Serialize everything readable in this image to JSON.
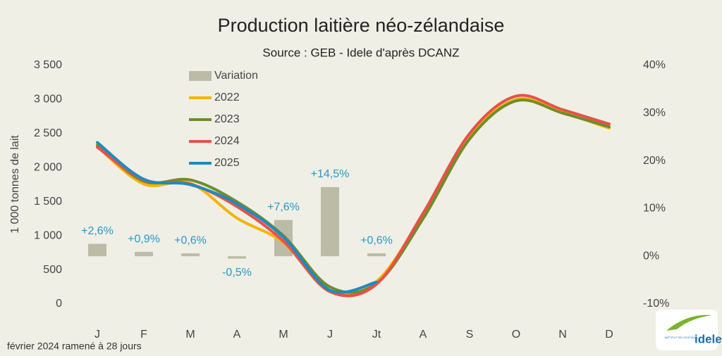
{
  "chart_data": {
    "type": "combo",
    "title": "Production laitière néo-zélandaise",
    "subtitle": "Source : GEB - Idele d'après DCANZ",
    "y_axis_label": "1 000 tonnes de lait",
    "footnote": "février 2024 ramené à 28 jours",
    "logo": {
      "text": "idele",
      "subtext": "INSTITUT DE L'ELEVAGE"
    },
    "categories": [
      "J",
      "F",
      "M",
      "A",
      "M",
      "J",
      "Jt",
      "A",
      "S",
      "O",
      "N",
      "D"
    ],
    "series": [
      {
        "name": "Variation",
        "type": "bar",
        "axis": "y2",
        "color": "#bcbba6",
        "values": [
          2.6,
          0.9,
          0.6,
          -0.5,
          7.6,
          14.5,
          0.6,
          null,
          null,
          null,
          null,
          null
        ],
        "value_labels": [
          "+2,6%",
          "+0,9%",
          "+0,6%",
          "-0,5%",
          "+7,6%",
          "+14,5%",
          "+0,6%",
          null,
          null,
          null,
          null,
          null
        ]
      },
      {
        "name": "2022",
        "type": "line",
        "color": "#f5b400",
        "values": [
          2310,
          1760,
          1770,
          1260,
          900,
          180,
          330,
          1310,
          2450,
          3000,
          2810,
          2580
        ]
      },
      {
        "name": "2023",
        "type": "line",
        "color": "#6f8c2a",
        "values": [
          2330,
          1800,
          1820,
          1500,
          1000,
          250,
          300,
          1250,
          2420,
          2980,
          2800,
          2600
        ]
      },
      {
        "name": "2024",
        "type": "line",
        "color": "#e8504a",
        "values": [
          2300,
          1820,
          1760,
          1430,
          920,
          180,
          290,
          1330,
          2500,
          3050,
          2850,
          2640
        ]
      },
      {
        "name": "2025",
        "type": "line",
        "color": "#1f8ac0",
        "values": [
          2370,
          1830,
          1750,
          1470,
          980,
          200,
          320,
          null,
          null,
          null,
          null,
          null
        ]
      }
    ],
    "ylim": [
      0,
      3500
    ],
    "yticks": [
      0,
      500,
      {
        "value": 1000,
        "label": "1 000"
      },
      {
        "value": 1500,
        "label": "1 500"
      },
      {
        "value": 2000,
        "label": "2 000"
      },
      {
        "value": 2500,
        "label": "2 500"
      },
      {
        "value": 3000,
        "label": "3 000"
      },
      {
        "value": 3500,
        "label": "3 500"
      }
    ],
    "y2lim": [
      -10,
      40
    ],
    "y2ticks": [
      {
        "value": -10,
        "label": "-10%"
      },
      {
        "value": 0,
        "label": "0%"
      },
      {
        "value": 10,
        "label": "10%"
      },
      {
        "value": 20,
        "label": "20%"
      },
      {
        "value": 30,
        "label": "30%"
      },
      {
        "value": 40,
        "label": "40%"
      }
    ],
    "grid": false,
    "legend": "top-left"
  }
}
